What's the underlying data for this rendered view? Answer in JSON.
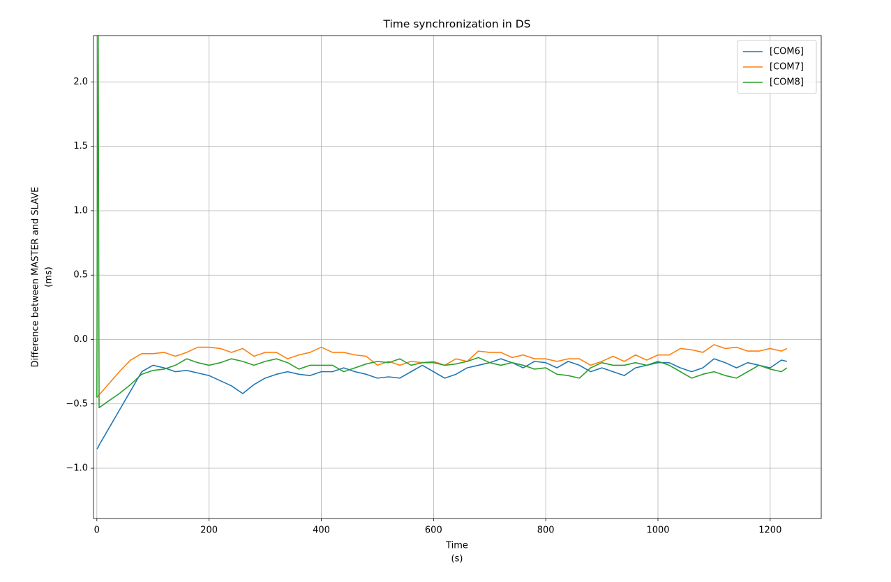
{
  "chart_data": {
    "type": "line",
    "title": "Time synchronization in DS",
    "xlabel": [
      "Time",
      "(s)"
    ],
    "ylabel": [
      "Difference between MASTER and SLAVE",
      "(ms)"
    ],
    "x": [
      0,
      2,
      4,
      20,
      40,
      60,
      80,
      100,
      120,
      140,
      160,
      180,
      200,
      220,
      240,
      260,
      280,
      300,
      320,
      340,
      360,
      380,
      400,
      420,
      440,
      460,
      480,
      500,
      520,
      540,
      560,
      580,
      600,
      620,
      640,
      660,
      680,
      700,
      720,
      740,
      760,
      780,
      800,
      820,
      840,
      860,
      880,
      900,
      920,
      940,
      960,
      980,
      1000,
      1020,
      1040,
      1060,
      1080,
      1100,
      1120,
      1140,
      1160,
      1180,
      1200,
      1220,
      1230
    ],
    "series": [
      {
        "name": "[COM6]",
        "color": "#1f77b4",
        "values": [
          -0.85,
          -0.84,
          -0.82,
          -0.7,
          -0.55,
          -0.4,
          -0.25,
          -0.2,
          -0.22,
          -0.25,
          -0.24,
          -0.26,
          -0.28,
          -0.32,
          -0.36,
          -0.42,
          -0.35,
          -0.3,
          -0.27,
          -0.25,
          -0.27,
          -0.28,
          -0.25,
          -0.25,
          -0.22,
          -0.25,
          -0.27,
          -0.3,
          -0.29,
          -0.3,
          -0.25,
          -0.2,
          -0.25,
          -0.3,
          -0.27,
          -0.22,
          -0.2,
          -0.18,
          -0.15,
          -0.18,
          -0.22,
          -0.17,
          -0.18,
          -0.22,
          -0.17,
          -0.2,
          -0.25,
          -0.22,
          -0.25,
          -0.28,
          -0.22,
          -0.2,
          -0.18,
          -0.18,
          -0.22,
          -0.25,
          -0.22,
          -0.15,
          -0.18,
          -0.22,
          -0.18,
          -0.2,
          -0.22,
          -0.16,
          -0.17
        ]
      },
      {
        "name": "[COM7]",
        "color": "#ff7f0e",
        "values": [
          -0.45,
          -0.44,
          -0.43,
          -0.35,
          -0.25,
          -0.16,
          -0.11,
          -0.11,
          -0.1,
          -0.13,
          -0.1,
          -0.06,
          -0.06,
          -0.07,
          -0.1,
          -0.07,
          -0.13,
          -0.1,
          -0.1,
          -0.15,
          -0.12,
          -0.1,
          -0.06,
          -0.1,
          -0.1,
          -0.12,
          -0.13,
          -0.2,
          -0.17,
          -0.2,
          -0.17,
          -0.18,
          -0.17,
          -0.2,
          -0.15,
          -0.17,
          -0.09,
          -0.1,
          -0.1,
          -0.14,
          -0.12,
          -0.15,
          -0.15,
          -0.17,
          -0.15,
          -0.15,
          -0.2,
          -0.17,
          -0.13,
          -0.17,
          -0.12,
          -0.16,
          -0.12,
          -0.12,
          -0.07,
          -0.08,
          -0.1,
          -0.04,
          -0.07,
          -0.06,
          -0.09,
          -0.09,
          -0.07,
          -0.09,
          -0.07
        ]
      },
      {
        "name": "[COM8]",
        "color": "#2ca02c",
        "values": [
          -0.45,
          3.0,
          -0.53,
          -0.48,
          -0.42,
          -0.35,
          -0.27,
          -0.24,
          -0.23,
          -0.2,
          -0.15,
          -0.18,
          -0.2,
          -0.18,
          -0.15,
          -0.17,
          -0.2,
          -0.17,
          -0.15,
          -0.18,
          -0.23,
          -0.2,
          -0.2,
          -0.2,
          -0.25,
          -0.22,
          -0.19,
          -0.17,
          -0.18,
          -0.15,
          -0.2,
          -0.18,
          -0.18,
          -0.2,
          -0.19,
          -0.17,
          -0.14,
          -0.18,
          -0.2,
          -0.18,
          -0.2,
          -0.23,
          -0.22,
          -0.27,
          -0.28,
          -0.3,
          -0.22,
          -0.18,
          -0.2,
          -0.2,
          -0.18,
          -0.2,
          -0.17,
          -0.2,
          -0.25,
          -0.3,
          -0.27,
          -0.25,
          -0.28,
          -0.3,
          -0.25,
          -0.2,
          -0.23,
          -0.25,
          -0.22
        ]
      }
    ],
    "xlim": [
      -6,
      1291
    ],
    "ylim": [
      -1.39,
      2.36
    ],
    "xticks": [
      0,
      200,
      400,
      600,
      800,
      1000,
      1200
    ],
    "yticks": [
      {
        "value": -1.0,
        "label": "−1.0"
      },
      {
        "value": -0.5,
        "label": "−0.5"
      },
      {
        "value": 0.0,
        "label": "0.0"
      },
      {
        "value": 0.5,
        "label": "0.5"
      },
      {
        "value": 1.0,
        "label": "1.0"
      },
      {
        "value": 1.5,
        "label": "1.5"
      },
      {
        "value": 2.0,
        "label": "2.0"
      }
    ],
    "grid": true,
    "legend": "upper right"
  }
}
